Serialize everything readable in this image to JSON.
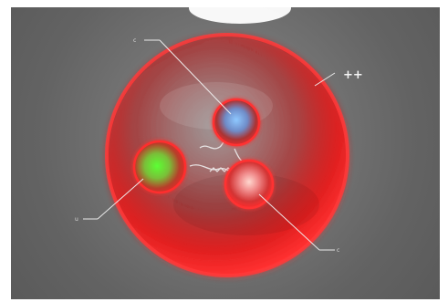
{
  "image": {
    "charge_label": "++",
    "annotations": {
      "top_left": "c",
      "bottom_left": "u",
      "bottom_right": "c"
    }
  }
}
